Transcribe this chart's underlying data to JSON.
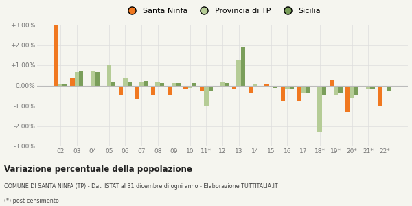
{
  "years": [
    "02",
    "03",
    "04",
    "05",
    "06",
    "07",
    "08",
    "09",
    "10",
    "11*",
    "12",
    "13",
    "14",
    "15",
    "16",
    "17",
    "18*",
    "19*",
    "20*",
    "21*",
    "22*"
  ],
  "santa_ninfa": [
    3.0,
    0.35,
    0.0,
    0.0,
    -0.5,
    -0.65,
    -0.5,
    -0.5,
    -0.18,
    -0.3,
    0.0,
    -0.2,
    -0.35,
    0.07,
    -0.75,
    -0.75,
    -0.05,
    0.25,
    -1.3,
    -0.08,
    -1.0
  ],
  "provincia_tp": [
    0.1,
    0.65,
    0.72,
    1.0,
    0.35,
    0.2,
    0.15,
    0.12,
    -0.12,
    -1.0,
    0.2,
    1.25,
    0.08,
    -0.08,
    -0.15,
    -0.35,
    -2.3,
    -0.45,
    -0.6,
    -0.15,
    -0.1
  ],
  "sicilia": [
    0.08,
    0.72,
    0.65,
    0.2,
    0.18,
    0.22,
    0.12,
    0.12,
    0.12,
    -0.3,
    0.12,
    1.9,
    0.0,
    -0.12,
    -0.2,
    -0.4,
    -0.5,
    -0.35,
    -0.45,
    -0.18,
    -0.3
  ],
  "sn_none": [
    false,
    false,
    true,
    true,
    false,
    false,
    false,
    false,
    false,
    false,
    true,
    false,
    false,
    false,
    false,
    false,
    false,
    false,
    false,
    false,
    false
  ],
  "santa_ninfa_color": "#f07820",
  "provincia_tp_color": "#b5cc96",
  "sicilia_color": "#7a9e5a",
  "ylim": [
    -3.0,
    3.0
  ],
  "yticks": [
    -3.0,
    -2.0,
    -1.0,
    0.0,
    1.0,
    2.0,
    3.0
  ],
  "ytick_labels": [
    "-3.00%",
    "-2.00%",
    "-1.00%",
    "0.00%",
    "+1.00%",
    "+2.00%",
    "+3.00%"
  ],
  "title": "Variazione percentuale della popolazione",
  "subtitle": "COMUNE DI SANTA NINFA (TP) - Dati ISTAT al 31 dicembre di ogni anno - Elaborazione TUTTITALIA.IT",
  "footnote": "(*) post-censimento",
  "legend_labels": [
    "Santa Ninfa",
    "Provincia di TP",
    "Sicilia"
  ],
  "background_color": "#f5f5ef",
  "grid_color": "#dddddd"
}
